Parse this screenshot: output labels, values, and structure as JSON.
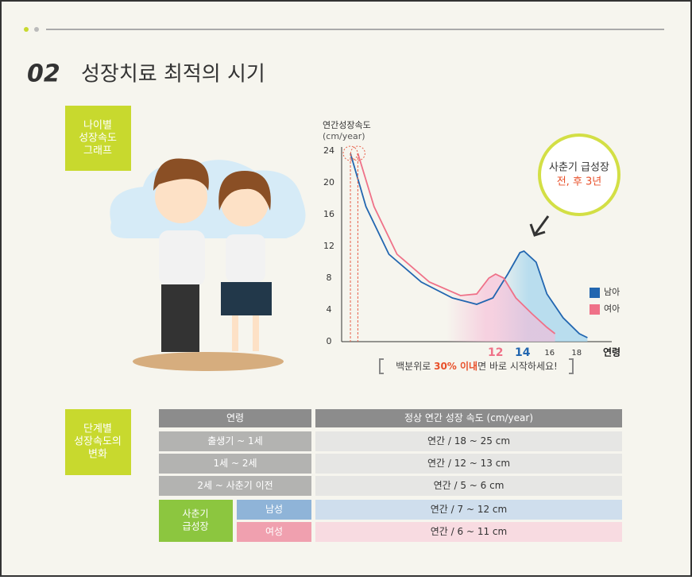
{
  "header": {
    "number": "02",
    "title": "성장치료 최적의 시기"
  },
  "section1": {
    "label": [
      "나이별",
      "성장속도",
      "그래프"
    ]
  },
  "chart_data": {
    "type": "line",
    "y_label": [
      "연간성장속도",
      "(cm/year)"
    ],
    "x_label": "연령",
    "xlim": [
      0.6,
      20.6
    ],
    "ylim": [
      0,
      24
    ],
    "yticks": [
      0,
      4,
      8,
      12,
      16,
      20,
      24
    ],
    "xticks": [
      12,
      14,
      16,
      18
    ],
    "series": [
      {
        "name": "남아",
        "color": "#2266b0",
        "x": [
          1.25,
          2.4,
          4.1,
          6.5,
          8.8,
          10.6,
          11.8,
          12.9,
          13.8,
          14.1,
          15,
          15.8,
          17,
          18.2,
          18.8
        ],
        "values": [
          23.7,
          17,
          11,
          7.5,
          5.5,
          4.7,
          5.5,
          8.5,
          11.2,
          11.4,
          10,
          6,
          3,
          1,
          0.5
        ]
      },
      {
        "name": "여아",
        "color": "#ef7188",
        "x": [
          1.8,
          3,
          4.7,
          7.1,
          9.4,
          10.6,
          11.5,
          12,
          12.6,
          13.5,
          14.7,
          15.8,
          16.4
        ],
        "values": [
          23.7,
          17,
          11,
          7.5,
          5.8,
          6,
          8,
          8.5,
          8,
          5.5,
          3.5,
          1.8,
          1
        ]
      }
    ],
    "callout": [
      "사춘기 급성장",
      "전, 후 3년"
    ],
    "note": [
      "백분위로 ",
      "30% 이내",
      "면 바로 시작하세요!"
    ]
  },
  "section2": {
    "label": [
      "단계별",
      "성장속도의",
      "변화"
    ]
  },
  "table": {
    "header": [
      "연령",
      "정상 연간 성장 속도 (cm/year)"
    ],
    "rows": [
      [
        "출생기 ~ 1세",
        "연간  / 18 ~ 25 cm"
      ],
      [
        "1세 ~ 2세",
        "연간  / 12 ~ 13 cm"
      ],
      [
        "2세 ~ 사춘기 이전",
        "연간  / 5 ~ 6 cm"
      ]
    ],
    "group": {
      "label": [
        "사춘기",
        "급성장"
      ],
      "rows": [
        [
          "남성",
          "연간  / 7 ~ 12 cm"
        ],
        [
          "여성",
          "연간  / 6 ~ 11 cm"
        ]
      ]
    }
  }
}
